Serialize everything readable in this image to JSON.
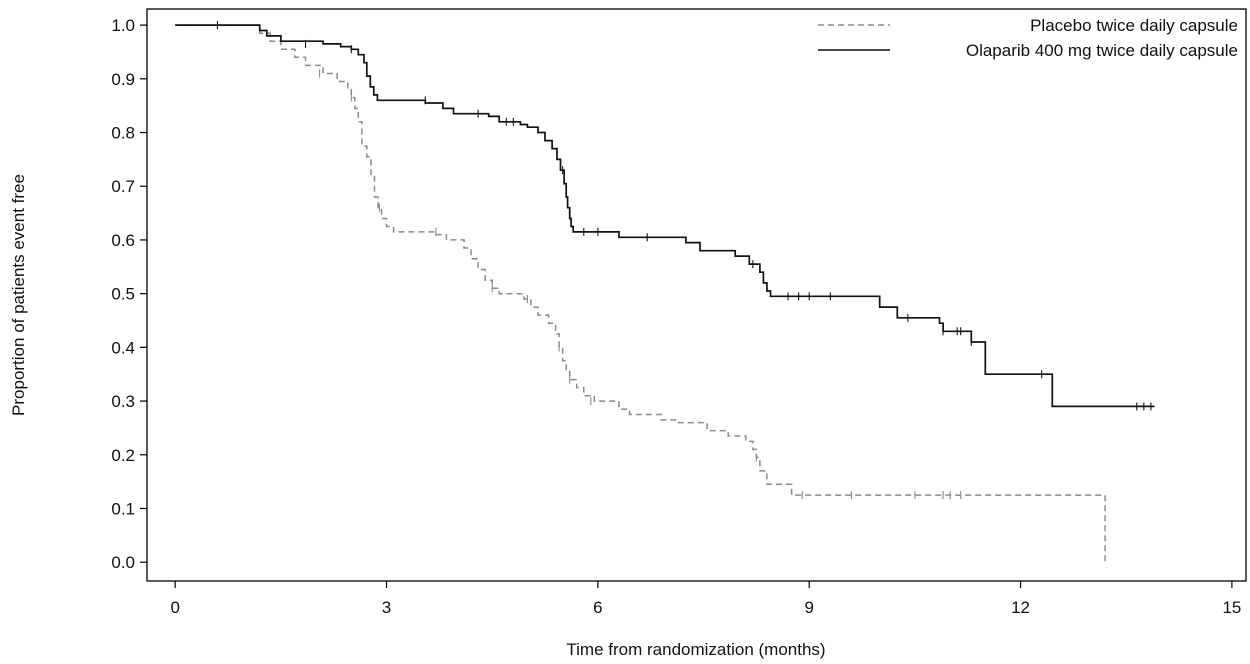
{
  "chart_data": {
    "type": "line",
    "xlabel": "Time from randomization (months)",
    "ylabel": "Proportion of patients event free",
    "xlim": [
      -0.4,
      15.2
    ],
    "ylim": [
      -0.035,
      1.03
    ],
    "xticks": [
      0,
      3,
      6,
      9,
      12,
      15
    ],
    "xtick_labels": [
      "0",
      "3",
      "6",
      "9",
      "12",
      "15"
    ],
    "yticks": [
      0.0,
      0.1,
      0.2,
      0.3,
      0.4,
      0.5,
      0.6,
      0.7,
      0.8,
      0.9,
      1.0
    ],
    "ytick_labels": [
      "0.0",
      "0.1",
      "0.2",
      "0.3",
      "0.4",
      "0.5",
      "0.6",
      "0.7",
      "0.8",
      "0.9",
      "1.0"
    ],
    "grid": false,
    "legend_position": "top-right",
    "series": [
      {
        "name": "Placebo twice daily capsule",
        "style": "dashed",
        "color": "#8a8a8a",
        "steps": [
          [
            0,
            1.0
          ],
          [
            1.2,
            0.985
          ],
          [
            1.35,
            0.97
          ],
          [
            1.5,
            0.955
          ],
          [
            1.7,
            0.94
          ],
          [
            1.85,
            0.925
          ],
          [
            2.1,
            0.91
          ],
          [
            2.3,
            0.895
          ],
          [
            2.45,
            0.88
          ],
          [
            2.5,
            0.865
          ],
          [
            2.55,
            0.845
          ],
          [
            2.6,
            0.82
          ],
          [
            2.65,
            0.775
          ],
          [
            2.72,
            0.755
          ],
          [
            2.78,
            0.72
          ],
          [
            2.83,
            0.68
          ],
          [
            2.88,
            0.66
          ],
          [
            2.93,
            0.64
          ],
          [
            3.0,
            0.625
          ],
          [
            3.1,
            0.615
          ],
          [
            3.7,
            0.61
          ],
          [
            3.85,
            0.6
          ],
          [
            4.1,
            0.585
          ],
          [
            4.2,
            0.565
          ],
          [
            4.3,
            0.545
          ],
          [
            4.4,
            0.525
          ],
          [
            4.5,
            0.51
          ],
          [
            4.6,
            0.5
          ],
          [
            4.95,
            0.49
          ],
          [
            5.05,
            0.475
          ],
          [
            5.15,
            0.46
          ],
          [
            5.3,
            0.445
          ],
          [
            5.4,
            0.425
          ],
          [
            5.45,
            0.4
          ],
          [
            5.5,
            0.375
          ],
          [
            5.55,
            0.355
          ],
          [
            5.6,
            0.34
          ],
          [
            5.7,
            0.325
          ],
          [
            5.8,
            0.31
          ],
          [
            5.95,
            0.3
          ],
          [
            6.3,
            0.285
          ],
          [
            6.45,
            0.275
          ],
          [
            6.9,
            0.265
          ],
          [
            7.1,
            0.26
          ],
          [
            7.55,
            0.245
          ],
          [
            7.85,
            0.235
          ],
          [
            8.1,
            0.225
          ],
          [
            8.2,
            0.21
          ],
          [
            8.25,
            0.195
          ],
          [
            8.3,
            0.17
          ],
          [
            8.4,
            0.145
          ],
          [
            8.75,
            0.125
          ],
          [
            13.2,
            0.125
          ],
          [
            13.2,
            0.0
          ]
        ],
        "censored": [
          [
            2.05,
            0.91
          ],
          [
            2.5,
            0.865
          ],
          [
            2.9,
            0.66
          ],
          [
            3.7,
            0.615
          ],
          [
            4.5,
            0.51
          ],
          [
            5.0,
            0.49
          ],
          [
            5.45,
            0.4
          ],
          [
            5.6,
            0.34
          ],
          [
            5.9,
            0.3
          ],
          [
            8.25,
            0.195
          ],
          [
            8.9,
            0.125
          ],
          [
            9.6,
            0.125
          ],
          [
            10.5,
            0.125
          ],
          [
            10.9,
            0.125
          ],
          [
            11.0,
            0.125
          ],
          [
            11.15,
            0.125
          ]
        ]
      },
      {
        "name": "Olaparib 400 mg twice daily capsule",
        "style": "solid",
        "color": "#111111",
        "steps": [
          [
            0,
            1.0
          ],
          [
            1.2,
            0.99
          ],
          [
            1.3,
            0.98
          ],
          [
            1.5,
            0.97
          ],
          [
            2.1,
            0.965
          ],
          [
            2.35,
            0.96
          ],
          [
            2.5,
            0.955
          ],
          [
            2.6,
            0.945
          ],
          [
            2.68,
            0.93
          ],
          [
            2.72,
            0.905
          ],
          [
            2.77,
            0.885
          ],
          [
            2.82,
            0.87
          ],
          [
            2.87,
            0.86
          ],
          [
            3.45,
            0.86
          ],
          [
            3.55,
            0.855
          ],
          [
            3.8,
            0.845
          ],
          [
            3.95,
            0.835
          ],
          [
            4.45,
            0.83
          ],
          [
            4.6,
            0.82
          ],
          [
            4.9,
            0.815
          ],
          [
            5.0,
            0.81
          ],
          [
            5.15,
            0.8
          ],
          [
            5.25,
            0.785
          ],
          [
            5.35,
            0.77
          ],
          [
            5.42,
            0.75
          ],
          [
            5.47,
            0.73
          ],
          [
            5.52,
            0.705
          ],
          [
            5.55,
            0.68
          ],
          [
            5.57,
            0.66
          ],
          [
            5.6,
            0.64
          ],
          [
            5.62,
            0.625
          ],
          [
            5.65,
            0.615
          ],
          [
            6.3,
            0.605
          ],
          [
            7.25,
            0.595
          ],
          [
            7.45,
            0.58
          ],
          [
            7.95,
            0.57
          ],
          [
            8.15,
            0.555
          ],
          [
            8.3,
            0.54
          ],
          [
            8.35,
            0.52
          ],
          [
            8.4,
            0.505
          ],
          [
            8.45,
            0.495
          ],
          [
            10.0,
            0.475
          ],
          [
            10.25,
            0.455
          ],
          [
            10.85,
            0.445
          ],
          [
            10.9,
            0.43
          ],
          [
            11.3,
            0.41
          ],
          [
            11.5,
            0.35
          ],
          [
            12.45,
            0.29
          ],
          [
            13.9,
            0.29
          ]
        ],
        "censored": [
          [
            0.6,
            1.0
          ],
          [
            1.85,
            0.965
          ],
          [
            2.5,
            0.955
          ],
          [
            3.55,
            0.86
          ],
          [
            4.3,
            0.835
          ],
          [
            4.7,
            0.82
          ],
          [
            4.8,
            0.82
          ],
          [
            5.5,
            0.73
          ],
          [
            5.8,
            0.615
          ],
          [
            6.0,
            0.615
          ],
          [
            6.7,
            0.605
          ],
          [
            8.2,
            0.555
          ],
          [
            8.7,
            0.495
          ],
          [
            8.85,
            0.495
          ],
          [
            9.0,
            0.495
          ],
          [
            9.3,
            0.495
          ],
          [
            10.4,
            0.455
          ],
          [
            10.9,
            0.43
          ],
          [
            11.1,
            0.43
          ],
          [
            11.15,
            0.43
          ],
          [
            11.3,
            0.41
          ],
          [
            12.3,
            0.35
          ],
          [
            13.65,
            0.29
          ],
          [
            13.75,
            0.29
          ],
          [
            13.85,
            0.29
          ]
        ]
      }
    ]
  }
}
